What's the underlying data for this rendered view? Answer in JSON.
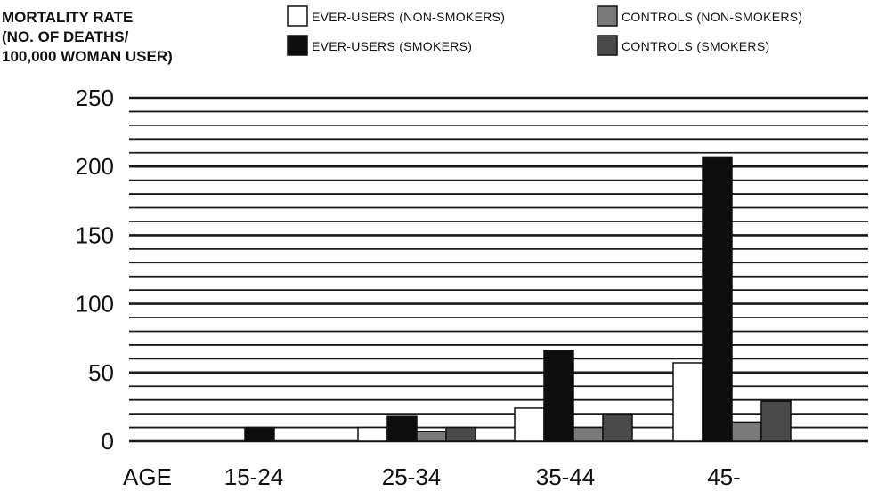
{
  "chart_data": {
    "type": "bar",
    "ylabel": [
      "MORTALITY RATE",
      "(NO. OF DEATHS/",
      "100,000 WOMAN USER)"
    ],
    "xlabel": "AGE",
    "categories": [
      "15-24",
      "25-34",
      "35-44",
      "45-"
    ],
    "ylim": [
      0,
      250
    ],
    "yticks": [
      0,
      50,
      100,
      150,
      200,
      250
    ],
    "grid": true,
    "legend_position": "top",
    "series": [
      {
        "name": "EVER-USERS (NON-SMOKERS)",
        "color": "#ffffff",
        "values": [
          0,
          10,
          24,
          57
        ]
      },
      {
        "name": "EVER-USERS (SMOKERS)",
        "color": "#0d0d0d",
        "values": [
          10,
          18,
          66,
          207
        ]
      },
      {
        "name": "CONTROLS (NON-SMOKERS)",
        "color": "#7a7a7a",
        "values": [
          0,
          7,
          10,
          14
        ]
      },
      {
        "name": "CONTROLS (SMOKERS)",
        "color": "#4a4a4a",
        "values": [
          0,
          10,
          20,
          29
        ]
      }
    ]
  }
}
